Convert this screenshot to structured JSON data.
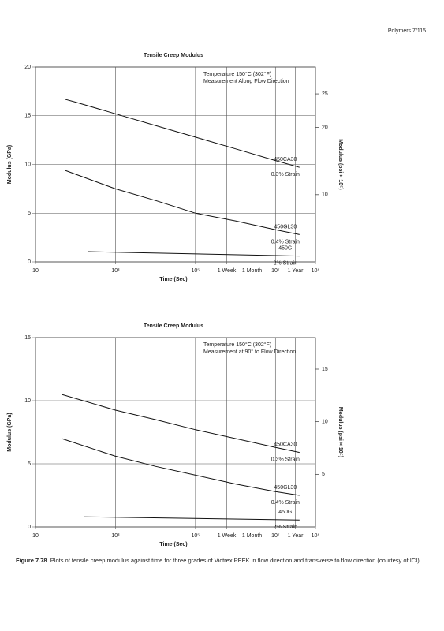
{
  "header": "Polymers   7/115",
  "chart_data": [
    {
      "type": "line",
      "title": "Tensile Creep Modulus",
      "x_label": "Time (Sec)",
      "y_label": "Modulus (GPa)",
      "y2_label": "Modulus (psi × 10⁵)",
      "log_x": true,
      "grid": true,
      "xlim": [
        10,
        100000000
      ],
      "xticks": [
        10,
        {
          "value": 1000,
          "label": "10³"
        },
        {
          "value": 100000,
          "label": "10⁵"
        },
        {
          "value": 10000000,
          "label": "10⁷"
        },
        {
          "value": 100000000,
          "label": "10⁸"
        }
      ],
      "markers": [
        {
          "value": 604800,
          "label": "1 Week"
        },
        {
          "value": 2592000,
          "label": "1 Month"
        },
        {
          "value": 31536000,
          "label": "1 Year"
        }
      ],
      "ylim": [
        0,
        20
      ],
      "yticks": [
        0,
        5,
        10,
        15,
        20
      ],
      "y2lim": [
        0,
        29
      ],
      "y2ticks": [
        10,
        20,
        25
      ],
      "annotations": [
        "Temperature 150°C (302°F)",
        "Measurement Along Flow Direction"
      ],
      "series": [
        {
          "name": "450CA30",
          "strain": "0.3% Strain",
          "color": "#111",
          "x": [
            54,
            100,
            1000,
            10000,
            100000,
            1000000,
            10000000,
            40000000
          ],
          "values": [
            16.7,
            16.4,
            15.2,
            14.0,
            12.8,
            11.6,
            10.4,
            9.7
          ]
        },
        {
          "name": "450GL30",
          "strain": "0.4% Strain",
          "color": "#111",
          "x": [
            54,
            1000,
            10000,
            100000,
            1000000,
            10000000,
            40000000
          ],
          "values": [
            9.4,
            7.5,
            6.3,
            5.0,
            4.2,
            3.3,
            2.8
          ]
        },
        {
          "name": "450G",
          "strain": "2% Strain",
          "color": "#111",
          "x": [
            200,
            40000000
          ],
          "values": [
            1.05,
            0.6
          ]
        }
      ]
    },
    {
      "type": "line",
      "title": "Tensile Creep Modulus",
      "x_label": "Time (Sec)",
      "y_label": "Modulus (GPa)",
      "y2_label": "Modulus (psi × 10⁵)",
      "log_x": true,
      "grid": true,
      "xlim": [
        10,
        100000000
      ],
      "xticks": [
        10,
        {
          "value": 1000,
          "label": "10³"
        },
        {
          "value": 100000,
          "label": "10⁵"
        },
        {
          "value": 10000000,
          "label": "10⁷"
        },
        {
          "value": 100000000,
          "label": "10⁸"
        }
      ],
      "markers": [
        {
          "value": 604800,
          "label": "1 Week"
        },
        {
          "value": 2592000,
          "label": "1 Month"
        },
        {
          "value": 31536000,
          "label": "1 Year"
        }
      ],
      "ylim": [
        0,
        15
      ],
      "yticks": [
        0,
        5,
        10,
        15
      ],
      "y2lim": [
        0,
        18
      ],
      "y2ticks": [
        5,
        10,
        15
      ],
      "annotations": [
        "Temperature 150°C (302°F)",
        "Measurement at 90° to Flow Direction"
      ],
      "series": [
        {
          "name": "450CA30",
          "strain": "0.3% Strain",
          "color": "#111",
          "x": [
            45,
            1000,
            10000,
            100000,
            1000000,
            10000000,
            40000000
          ],
          "values": [
            10.5,
            9.25,
            8.5,
            7.7,
            7.0,
            6.3,
            5.9
          ]
        },
        {
          "name": "450GL30",
          "strain": "0.4% Strain",
          "color": "#111",
          "x": [
            45,
            1000,
            10000,
            100000,
            1000000,
            10000000,
            40000000
          ],
          "values": [
            7.0,
            5.6,
            4.8,
            4.1,
            3.4,
            2.8,
            2.5
          ]
        },
        {
          "name": "450G",
          "strain": "2% Strain",
          "color": "#111",
          "x": [
            166,
            40000000
          ],
          "values": [
            0.8,
            0.55
          ]
        }
      ]
    }
  ],
  "caption": {
    "label": "Figure 7.78",
    "text": "Plots of tensile creep modulus against time for three grades of Victrex PEEK in flow direction and transverse to flow direction (courtesy of ICI)"
  }
}
